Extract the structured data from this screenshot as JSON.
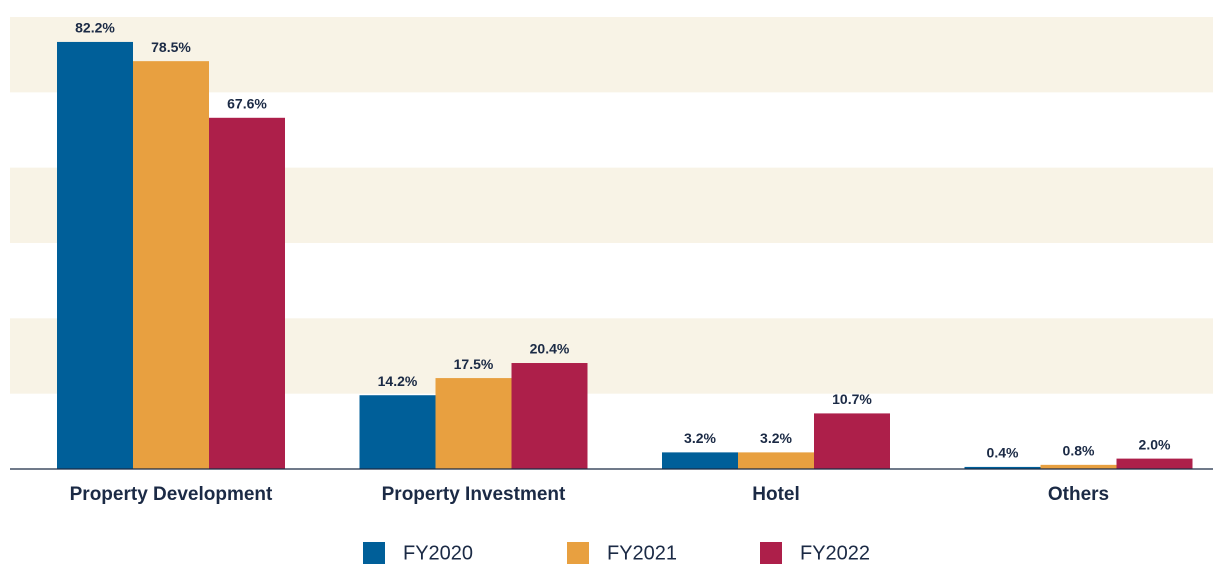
{
  "chart_data": {
    "type": "bar",
    "categories": [
      "Property Development",
      "Property Investment",
      "Hotel",
      "Others"
    ],
    "series": [
      {
        "name": "FY2020",
        "color": "#005f99",
        "values": [
          82.2,
          14.2,
          3.2,
          0.4
        ],
        "value_labels": [
          "82.2%",
          "14.2%",
          "3.2%",
          "0.4%"
        ]
      },
      {
        "name": "FY2021",
        "color": "#e8a040",
        "values": [
          78.5,
          17.5,
          3.2,
          0.8
        ],
        "value_labels": [
          "78.5%",
          "17.5%",
          "3.2%",
          "0.8%"
        ]
      },
      {
        "name": "FY2022",
        "color": "#ad1f4a",
        "values": [
          67.6,
          20.4,
          10.7,
          2.0
        ],
        "value_labels": [
          "67.6%",
          "20.4%",
          "10.7%",
          "2.0%"
        ]
      }
    ],
    "ylim": [
      0,
      87
    ],
    "yticks": [
      0,
      14.5,
      29,
      43.5,
      58,
      72.5,
      87
    ],
    "grid_bands": true,
    "band_color": "#f8f3e6",
    "legend": "bottom"
  }
}
